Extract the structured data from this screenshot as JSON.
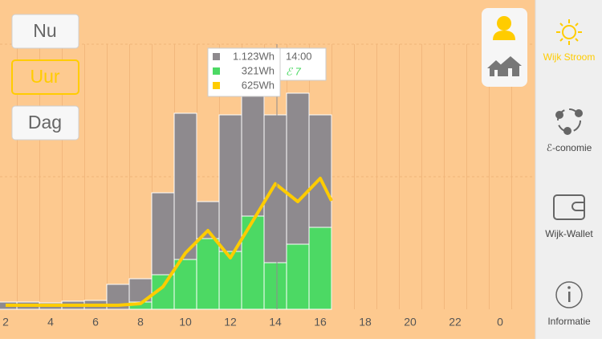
{
  "mode_buttons": [
    "Nu",
    "Uur",
    "Dag"
  ],
  "nav": [
    "Wijk Stroom",
    "ℰ-conomie",
    "Wijk-Wallet",
    "Informatie"
  ],
  "tooltip": {
    "rows": [
      "1.123Wh",
      "321Wh",
      "625Wh"
    ],
    "time": "14:00",
    "price": "ℰ 7"
  },
  "chart_data": {
    "type": "bar",
    "stacked": true,
    "x": [
      2,
      3,
      4,
      5,
      6,
      7,
      8,
      9,
      10,
      11,
      12,
      13,
      14,
      15,
      16
    ],
    "series": [
      {
        "color": "#4cd964",
        "values": [
          0,
          0,
          0,
          0,
          0,
          0,
          36,
          172,
          248,
          352,
          288,
          464,
          232,
          324,
          408
        ]
      },
      {
        "color": "#8e8a8e",
        "values": [
          36,
          36,
          32,
          40,
          44,
          124,
          116,
          408,
          728,
          184,
          680,
          624,
          736,
          752,
          560
        ]
      },
      {
        "type": "line",
        "color": "#ffcc00",
        "x": [
          2,
          3,
          4,
          5,
          6,
          7,
          8,
          9,
          10,
          11,
          12,
          13,
          14,
          15,
          16,
          16.5
        ],
        "values": [
          20,
          20,
          20,
          20,
          20,
          20,
          28,
          112,
          280,
          392,
          256,
          440,
          625,
          536,
          652,
          540
        ]
      }
    ],
    "xlim": [
      1.75,
      25.5
    ],
    "ylim": [
      0,
      1540
    ],
    "xticks": [
      2,
      4,
      6,
      8,
      10,
      12,
      14,
      16,
      18,
      20,
      22,
      {
        "value": 24,
        "label": "0"
      }
    ]
  }
}
